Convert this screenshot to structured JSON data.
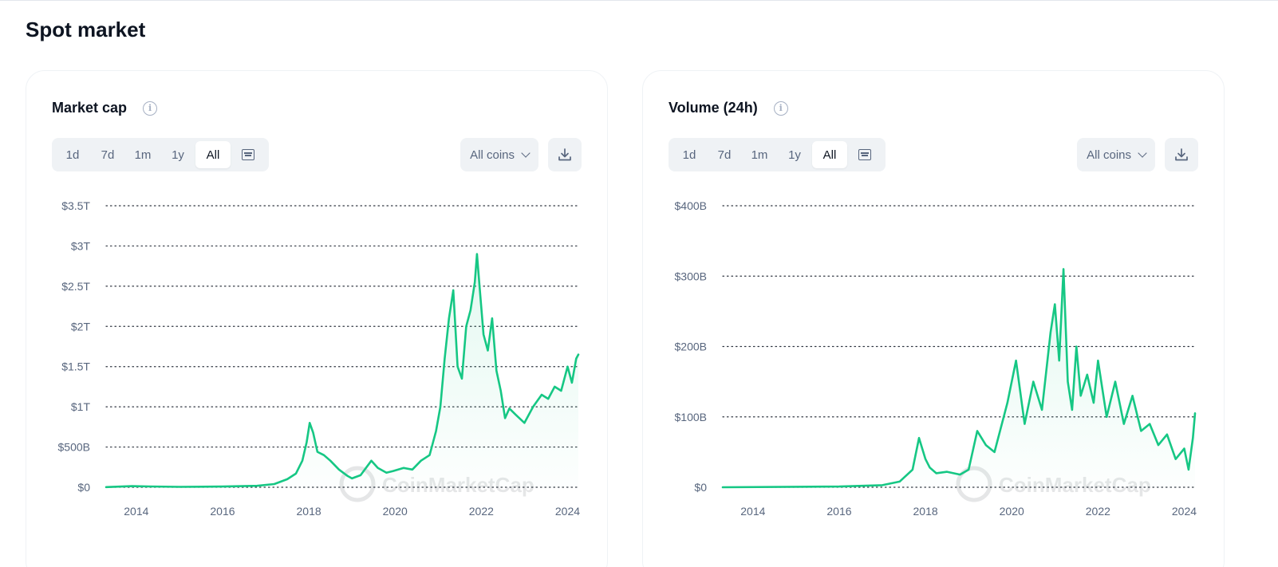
{
  "section": {
    "title": "Spot market"
  },
  "cards": [
    {
      "title": "Market cap",
      "info_icon": "info-icon",
      "ranges": [
        "1d",
        "7d",
        "1m",
        "1y",
        "All"
      ],
      "active_range": "All",
      "calendar_icon": "calendar-icon",
      "coins_label": "All coins",
      "download_icon": "download-icon",
      "watermark": "CoinMarketCap"
    },
    {
      "title": "Volume (24h)",
      "info_icon": "info-icon",
      "ranges": [
        "1d",
        "7d",
        "1m",
        "1y",
        "All"
      ],
      "active_range": "All",
      "calendar_icon": "calendar-icon",
      "coins_label": "All coins",
      "download_icon": "download-icon",
      "watermark": "CoinMarketCap"
    }
  ],
  "colors": {
    "line": "#16c784",
    "grid": "#0d1421",
    "text": "#58667e"
  },
  "chart_data": [
    {
      "type": "area",
      "title": "Market cap",
      "x_ticks": [
        "2014",
        "2016",
        "2018",
        "2020",
        "2022",
        "2024"
      ],
      "y_ticks": [
        "$0",
        "$500B",
        "$1T",
        "$1.5T",
        "$2T",
        "$2.5T",
        "$3T",
        "$3.5T"
      ],
      "ylim": [
        0,
        3500
      ],
      "xlim": [
        2013.3,
        2024.25
      ],
      "y_unit": "billion USD",
      "grid": true,
      "series": [
        {
          "x": [
            2013.3,
            2013.9,
            2014.3,
            2015.0,
            2016.0,
            2016.8,
            2017.2,
            2017.5,
            2017.7,
            2017.85,
            2017.95,
            2018.02,
            2018.1,
            2018.2,
            2018.35,
            2018.5,
            2018.7,
            2018.9,
            2019.0,
            2019.2,
            2019.45,
            2019.6,
            2019.8,
            2019.95,
            2020.2,
            2020.4,
            2020.6,
            2020.8,
            2020.95,
            2021.05,
            2021.15,
            2021.25,
            2021.35,
            2021.45,
            2021.55,
            2021.65,
            2021.75,
            2021.85,
            2021.9,
            2021.95,
            2022.05,
            2022.15,
            2022.25,
            2022.35,
            2022.45,
            2022.55,
            2022.65,
            2022.8,
            2023.0,
            2023.2,
            2023.4,
            2023.55,
            2023.7,
            2023.85,
            2024.0,
            2024.1,
            2024.2,
            2024.25
          ],
          "y": [
            2,
            14,
            10,
            5,
            9,
            18,
            40,
            100,
            170,
            330,
            560,
            800,
            680,
            440,
            400,
            330,
            220,
            140,
            110,
            150,
            330,
            240,
            180,
            200,
            240,
            220,
            330,
            400,
            700,
            1000,
            1600,
            2100,
            2450,
            1500,
            1350,
            2000,
            2200,
            2550,
            2900,
            2550,
            1900,
            1700,
            2100,
            1450,
            1200,
            860,
            980,
            900,
            800,
            1000,
            1150,
            1100,
            1250,
            1200,
            1500,
            1300,
            1600,
            1650
          ]
        }
      ]
    },
    {
      "type": "area",
      "title": "Volume (24h)",
      "x_ticks": [
        "2014",
        "2016",
        "2018",
        "2020",
        "2022",
        "2024"
      ],
      "y_ticks": [
        "$0",
        "$100B",
        "$200B",
        "$300B",
        "$400B"
      ],
      "ylim": [
        0,
        400
      ],
      "xlim": [
        2013.3,
        2024.25
      ],
      "y_unit": "billion USD",
      "grid": true,
      "series": [
        {
          "x": [
            2013.3,
            2016.0,
            2017.0,
            2017.4,
            2017.7,
            2017.85,
            2018.0,
            2018.1,
            2018.25,
            2018.5,
            2018.8,
            2019.0,
            2019.2,
            2019.4,
            2019.6,
            2019.9,
            2020.1,
            2020.3,
            2020.5,
            2020.7,
            2020.9,
            2021.0,
            2021.1,
            2021.2,
            2021.3,
            2021.4,
            2021.5,
            2021.6,
            2021.75,
            2021.9,
            2022.0,
            2022.2,
            2022.4,
            2022.6,
            2022.8,
            2023.0,
            2023.2,
            2023.4,
            2023.6,
            2023.8,
            2024.0,
            2024.1,
            2024.2,
            2024.25
          ],
          "y": [
            0,
            1,
            3,
            8,
            25,
            70,
            40,
            28,
            20,
            22,
            18,
            25,
            80,
            60,
            50,
            120,
            180,
            90,
            150,
            110,
            220,
            260,
            180,
            310,
            150,
            110,
            200,
            130,
            160,
            120,
            180,
            100,
            150,
            90,
            130,
            80,
            90,
            60,
            75,
            40,
            55,
            25,
            70,
            105
          ]
        }
      ]
    }
  ]
}
